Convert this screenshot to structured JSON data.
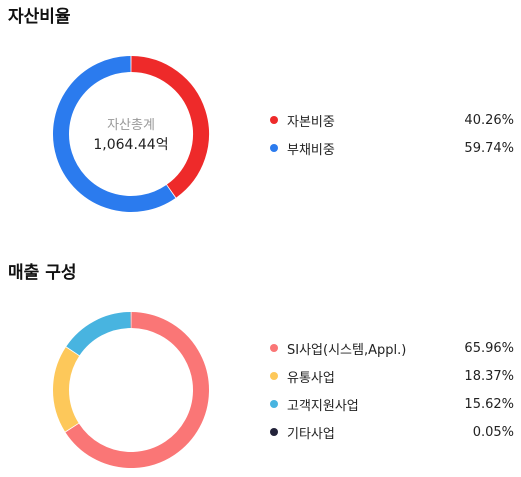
{
  "asset_ratio": {
    "title": "자산비율",
    "center_label": "자산총계",
    "center_value": "1,064.44억",
    "items": [
      {
        "label": "자본비중",
        "value": "40.26%",
        "color": "#ee2a2a"
      },
      {
        "label": "부채비중",
        "value": "59.74%",
        "color": "#2b7bee"
      }
    ]
  },
  "sales_composition": {
    "title": "매출 구성",
    "items": [
      {
        "label": "SI사업(시스템,Appl.)",
        "value": "65.96%",
        "color": "#fa7676"
      },
      {
        "label": "유통사업",
        "value": "18.37%",
        "color": "#fdc85a"
      },
      {
        "label": "고객지원사업",
        "value": "15.62%",
        "color": "#48b4e0"
      },
      {
        "label": "기타사업",
        "value": "0.05%",
        "color": "#23233a"
      }
    ]
  },
  "chart_data": [
    {
      "type": "pie",
      "title": "자산비율",
      "categories": [
        "자본비중",
        "부채비중"
      ],
      "values": [
        40.26,
        59.74
      ],
      "unit": "%",
      "colors": [
        "#ee2a2a",
        "#2b7bee"
      ]
    },
    {
      "type": "pie",
      "title": "매출 구성",
      "categories": [
        "SI사업(시스템,Appl.)",
        "유통사업",
        "고객지원사업",
        "기타사업"
      ],
      "values": [
        65.96,
        18.37,
        15.62,
        0.05
      ],
      "unit": "%",
      "colors": [
        "#fa7676",
        "#fdc85a",
        "#48b4e0",
        "#23233a"
      ]
    }
  ]
}
